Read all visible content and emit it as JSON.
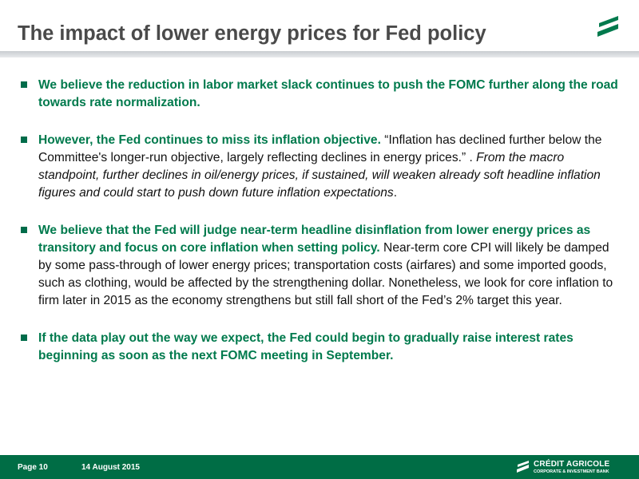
{
  "slide": {
    "title": "The impact of lower energy prices for Fed policy"
  },
  "bullets": [
    {
      "bold": "We believe the reduction in labor market slack continues to push the FOMC further along the road towards rate normalization."
    },
    {
      "bold": "However, the Fed continues to miss its inflation objective.",
      "quote": " “Inflation has declined further below the Committee's longer-run objective, largely reflecting declines in energy prices.” . ",
      "italic": "From the macro standpoint, further declines in oil/energy prices, if sustained, will weaken already soft headline inflation figures and could start to push down future inflation expectations",
      "end": "."
    },
    {
      "bold": "We believe that the Fed will judge near-term headline disinflation from lower energy prices as transitory and focus on core inflation when setting policy.",
      "rest": " Near-term core CPI will likely be damped by some pass-through of lower energy prices; transportation costs (airfares) and some imported goods, such as clothing, would be affected by the strengthening dollar. Nonetheless, we look for core inflation to firm later in 2015 as the economy strengthens but still fall short of the Fed’s 2% target this year."
    },
    {
      "bold": "If the data play out the way we expect, the Fed could begin to gradually raise interest rates beginning as soon as the next FOMC meeting in September."
    }
  ],
  "footer": {
    "page": "Page 10",
    "date": "14 August 2015",
    "brand_name": "CRÉDIT AGRICOLE",
    "brand_sub": "CORPORATE & INVESTMENT BANK"
  },
  "colors": {
    "accent_green": "#007a4d",
    "footer_green": "#006d45",
    "title_gray": "#4a4a4a"
  },
  "icons": {
    "top_right": "credit-agricole-logo-icon",
    "footer_brand": "credit-agricole-brand-icon",
    "bullet": "square-bullet-icon"
  }
}
